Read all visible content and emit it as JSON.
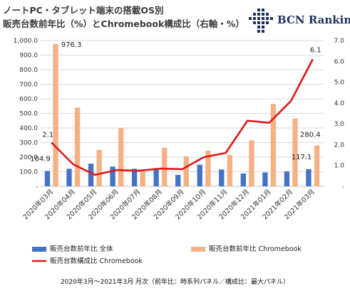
{
  "title_line1": "ノートPC・タブレット端末の搭載OS別",
  "title_line2": "販売台数前年比（%）とChromebook構成比（右軸・%）",
  "logo": {
    "text": "BCN Ranking",
    "icon": "bcn-grid-logo-icon",
    "color": "#1e2f5c"
  },
  "caption": "2020年3月～2021年3月 月次（前年比：時系列パネル／構成比：最大パネル）",
  "chart_data": {
    "type": "bar",
    "categories": [
      "2020年03月",
      "2020年04月",
      "2020年05月",
      "2020年06月",
      "2020年07月",
      "2020年08月",
      "2020年09月",
      "2020年10月",
      "2020年11月",
      "2020年12月",
      "2021年01月",
      "2021年02月",
      "2021年03月"
    ],
    "y_left": {
      "min": 0,
      "max": 1000,
      "ticks": [
        "-",
        "100.0",
        "200.0",
        "300.0",
        "400.0",
        "500.0",
        "600.0",
        "700.0",
        "800.0",
        "900.0",
        "1,000.0"
      ]
    },
    "y_right": {
      "min": 0,
      "max": 7,
      "ticks": [
        "-",
        "1.0",
        "2.0",
        "3.0",
        "4.0",
        "5.0",
        "6.0",
        "7.0"
      ]
    },
    "series": [
      {
        "name": "販売台数前年比 全体",
        "type": "bar",
        "axis": "left",
        "color": "#4472c4",
        "values": [
          104.9,
          120,
          155,
          135,
          120,
          125,
          78,
          148,
          115,
          88,
          95,
          103,
          117.1
        ]
      },
      {
        "name": "販売台数前年比 Chromebook",
        "type": "bar",
        "axis": "left",
        "color": "#f4b183",
        "values": [
          976.3,
          540,
          250,
          400,
          103,
          265,
          205,
          245,
          215,
          315,
          565,
          465,
          280.4
        ]
      },
      {
        "name": "販売台数構成比 Chromebook",
        "type": "line",
        "axis": "right",
        "color": "#e0161b",
        "values": [
          2.1,
          1.05,
          0.55,
          0.78,
          0.75,
          0.85,
          0.82,
          1.4,
          1.6,
          3.15,
          3.05,
          4.1,
          6.1
        ]
      }
    ],
    "data_labels": [
      {
        "text": "976.3",
        "series": 1,
        "index": 0
      },
      {
        "text": "104.9",
        "series": 0,
        "index": 0
      },
      {
        "text": "2.1",
        "series": 2,
        "index": 0
      },
      {
        "text": "280.4",
        "series": 1,
        "index": 12
      },
      {
        "text": "117.1",
        "series": 0,
        "index": 12
      },
      {
        "text": "6.1",
        "series": 2,
        "index": 12
      }
    ],
    "grid": true,
    "legend_position": "bottom"
  }
}
